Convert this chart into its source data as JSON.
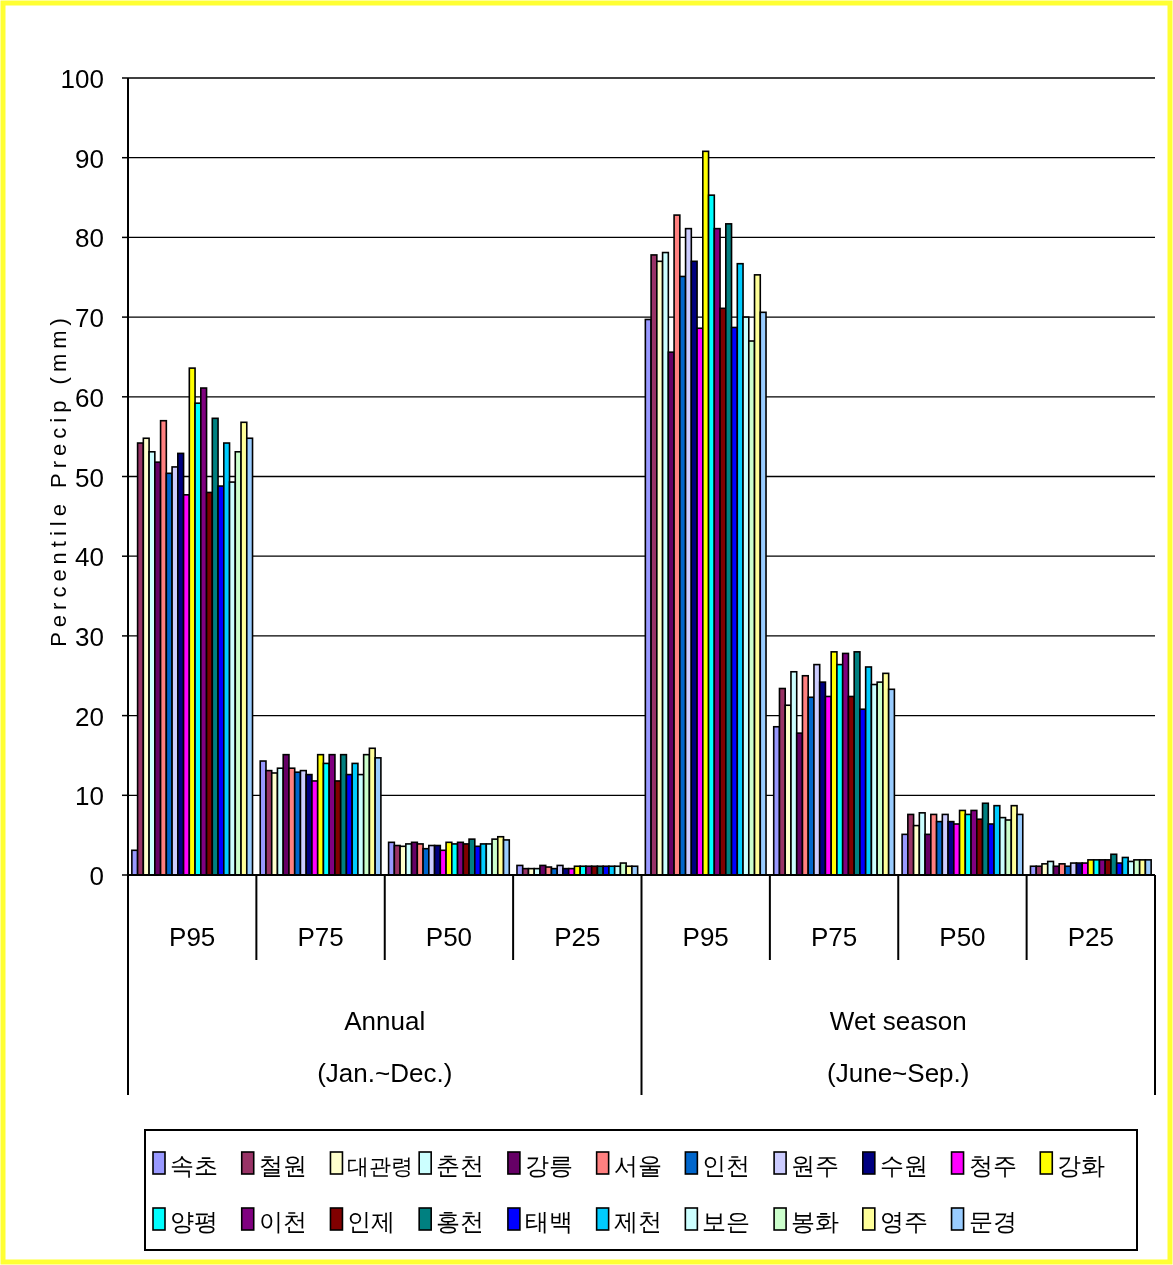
{
  "chart_data": {
    "type": "bar",
    "ylabel": "Percentile Precip (mm)",
    "categories": [
      "P95",
      "P75",
      "P50",
      "P25",
      "P95",
      "P75",
      "P50",
      "P25"
    ],
    "annotations": [
      "Annual",
      "(Jan.~Dec.)",
      "Wet season",
      "(June~Sep.)"
    ],
    "ylim": [
      0,
      100
    ],
    "yticks": [
      0,
      10,
      20,
      30,
      40,
      50,
      60,
      70,
      80,
      90,
      100
    ],
    "grid": "y",
    "legend": "bottom",
    "series": [
      {
        "name": "속초",
        "color": "#9999ff",
        "values": [
          3.1,
          14.3,
          4.1,
          1.2,
          69.7,
          18.6,
          5.1,
          1.1
        ]
      },
      {
        "name": "철원",
        "color": "#993366",
        "values": [
          54.2,
          13.1,
          3.7,
          0.8,
          77.8,
          23.4,
          7.6,
          1.1
        ]
      },
      {
        "name": "대관령",
        "color": "#ffffcc",
        "values": [
          54.8,
          12.8,
          3.6,
          0.8,
          77.0,
          21.3,
          6.2,
          1.4
        ]
      },
      {
        "name": "춘천",
        "color": "#ccffff",
        "values": [
          53.1,
          13.4,
          3.9,
          0.8,
          78.1,
          25.5,
          7.8,
          1.7
        ]
      },
      {
        "name": "강릉",
        "color": "#660066",
        "values": [
          51.8,
          15.1,
          4.1,
          1.2,
          65.6,
          17.8,
          5.1,
          1.1
        ]
      },
      {
        "name": "서울",
        "color": "#ff8080",
        "values": [
          57.0,
          13.4,
          3.9,
          1.0,
          82.8,
          25.0,
          7.6,
          1.4
        ]
      },
      {
        "name": "인천",
        "color": "#0066cc",
        "values": [
          50.4,
          12.9,
          3.3,
          0.8,
          75.1,
          22.3,
          6.7,
          1.1
        ]
      },
      {
        "name": "원주",
        "color": "#ccccff",
        "values": [
          51.2,
          13.1,
          3.7,
          1.2,
          81.1,
          26.4,
          7.6,
          1.5
        ]
      },
      {
        "name": "수원",
        "color": "#000080",
        "values": [
          52.9,
          12.6,
          3.7,
          0.8,
          77.0,
          24.2,
          6.7,
          1.5
        ]
      },
      {
        "name": "청주",
        "color": "#ff00ff",
        "values": [
          47.7,
          11.8,
          3.1,
          0.8,
          68.6,
          22.4,
          6.4,
          1.5
        ]
      },
      {
        "name": "강화",
        "color": "#ffff00",
        "values": [
          63.6,
          15.1,
          4.1,
          1.1,
          90.8,
          28.0,
          8.1,
          1.9
        ]
      },
      {
        "name": "양평",
        "color": "#00ffff",
        "values": [
          59.2,
          14.0,
          3.9,
          1.1,
          85.3,
          26.4,
          7.6,
          1.9
        ]
      },
      {
        "name": "이천",
        "color": "#800080",
        "values": [
          61.1,
          15.1,
          4.1,
          1.1,
          81.1,
          27.8,
          8.1,
          1.9
        ]
      },
      {
        "name": "인제",
        "color": "#800000",
        "values": [
          48.0,
          11.8,
          3.9,
          1.1,
          71.1,
          22.4,
          7.0,
          1.9
        ]
      },
      {
        "name": "홍천",
        "color": "#008080",
        "values": [
          57.3,
          15.1,
          4.5,
          1.1,
          81.7,
          28.0,
          9.0,
          2.6
        ]
      },
      {
        "name": "태백",
        "color": "#0000ff",
        "values": [
          48.8,
          12.6,
          3.6,
          1.1,
          68.7,
          20.8,
          6.4,
          1.5
        ]
      },
      {
        "name": "제천",
        "color": "#00ccff",
        "values": [
          54.2,
          14.0,
          3.9,
          1.1,
          76.7,
          26.1,
          8.7,
          2.2
        ]
      },
      {
        "name": "보은",
        "color": "#ccffff",
        "values": [
          49.3,
          12.6,
          3.9,
          1.1,
          70.0,
          23.9,
          7.2,
          1.7
        ]
      },
      {
        "name": "봉화",
        "color": "#ccffcc",
        "values": [
          53.1,
          15.1,
          4.5,
          1.5,
          67.0,
          24.2,
          6.9,
          1.9
        ]
      },
      {
        "name": "영주",
        "color": "#ffff99",
        "values": [
          56.8,
          15.9,
          4.8,
          1.1,
          75.3,
          25.3,
          8.7,
          1.9
        ]
      },
      {
        "name": "문경",
        "color": "#99ccff",
        "values": [
          54.8,
          14.7,
          4.4,
          1.1,
          70.6,
          23.3,
          7.6,
          1.9
        ]
      }
    ]
  }
}
